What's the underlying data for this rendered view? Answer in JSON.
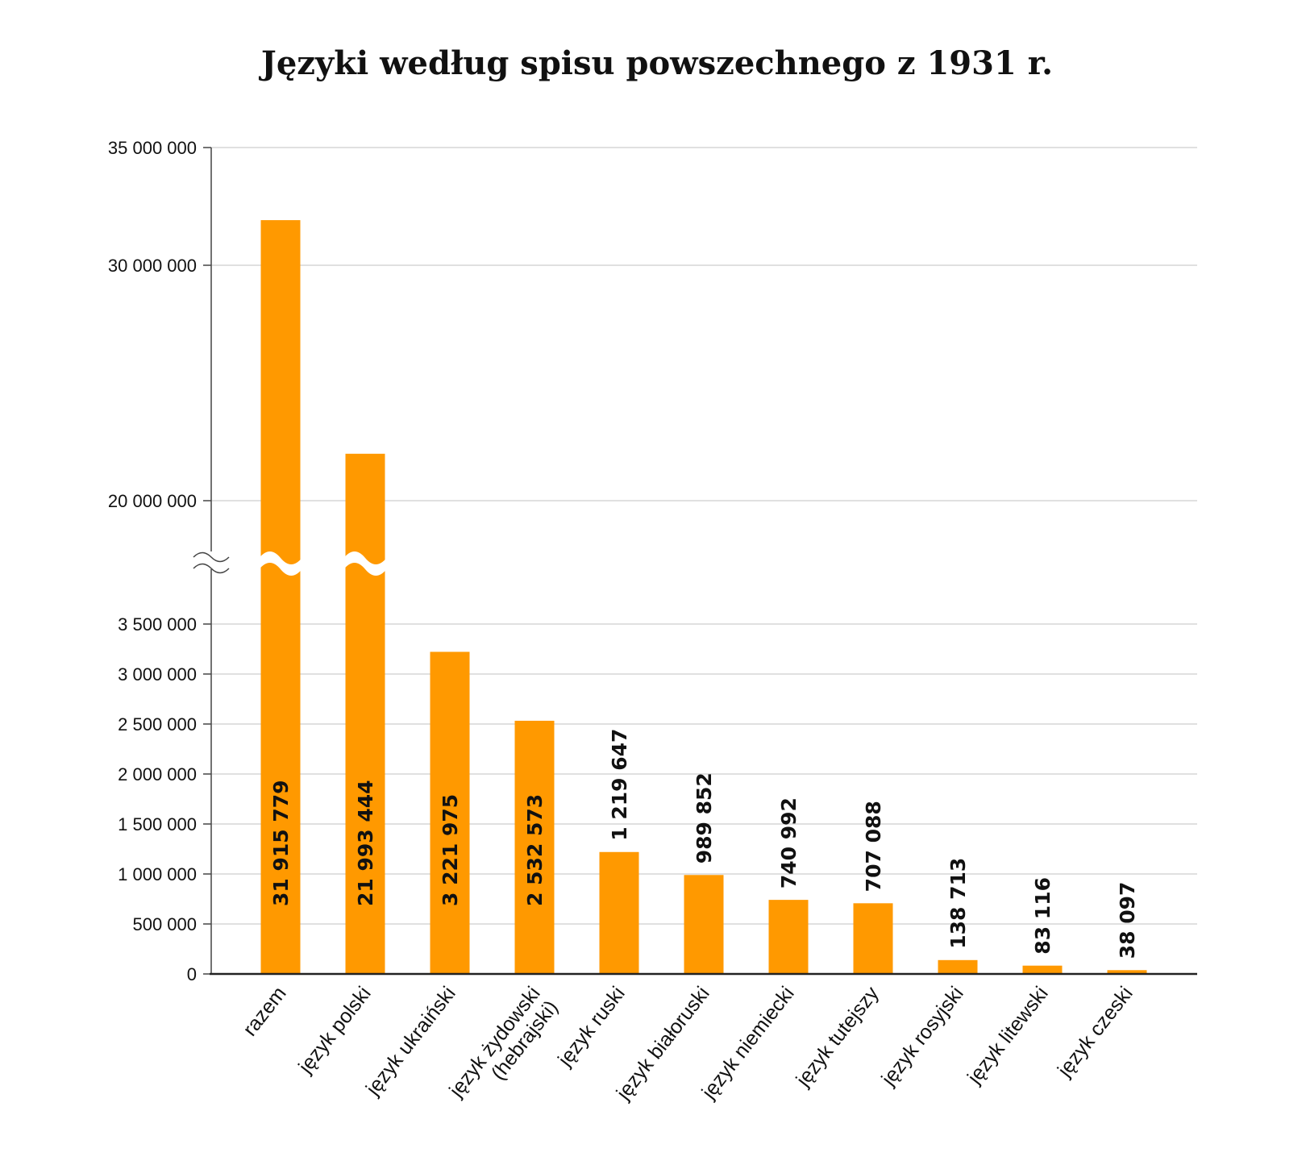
{
  "chart_data": {
    "type": "bar",
    "title": "Języki według spisu powszechnego z 1931 r.",
    "xlabel": "",
    "ylabel": "",
    "axis_break": true,
    "ylim_lower": [
      0,
      3500000
    ],
    "ylim_upper": [
      20000000,
      35000000
    ],
    "yticks_lower": [
      0,
      500000,
      1000000,
      1500000,
      2000000,
      2500000,
      3000000,
      3500000
    ],
    "yticks_upper": [
      20000000,
      30000000,
      35000000
    ],
    "ytick_labels_lower": [
      "0",
      "500 000",
      "1 000 000",
      "1 500 000",
      "2 000 000",
      "2 500 000",
      "3 000 000",
      "3 500 000"
    ],
    "ytick_labels_upper": [
      "20 000 000",
      "30 000 000",
      "35 000 000"
    ],
    "grid": true,
    "bar_color": "#FF9900",
    "categories": [
      [
        "razem"
      ],
      [
        "język polski"
      ],
      [
        "język ukraiński"
      ],
      [
        "język żydowski",
        "(hebrajski)"
      ],
      [
        "język ruski"
      ],
      [
        "język białoruski"
      ],
      [
        "język niemiecki"
      ],
      [
        "język tutejszy"
      ],
      [
        "język rosyjski"
      ],
      [
        "język litewski"
      ],
      [
        "język czeski"
      ]
    ],
    "values": [
      31915779,
      21993444,
      3221975,
      2532573,
      1219647,
      989852,
      740992,
      707088,
      138713,
      83116,
      38097
    ],
    "value_labels": [
      "31 915 779",
      "21 993 444",
      "3 221 975",
      "2 532 573",
      "1 219 647",
      "989 852",
      "740 992",
      "707 088",
      "138 713",
      "83 116",
      "38 097"
    ]
  }
}
